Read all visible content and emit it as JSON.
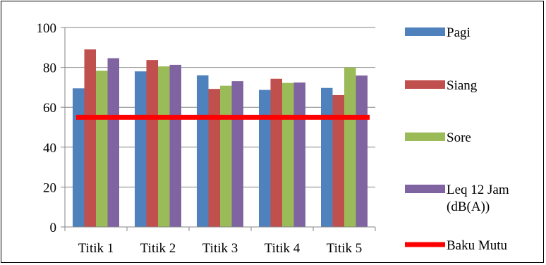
{
  "chart_data": {
    "type": "bar",
    "title": "",
    "xlabel": "",
    "ylabel": "",
    "categories": [
      "Titik 1",
      "Titik 2",
      "Titik 3",
      "Titik 4",
      "Titik 5"
    ],
    "ylim": [
      0,
      100
    ],
    "yticks": [
      0,
      20,
      40,
      60,
      80,
      100
    ],
    "grid": true,
    "legend_position": "right",
    "series": [
      {
        "name": "Pagi",
        "color": "#4F81BD",
        "values": [
          69.5,
          78,
          76,
          68.7,
          69.7
        ]
      },
      {
        "name": "Siang",
        "color": "#C0504D",
        "values": [
          89,
          83.7,
          69.2,
          74.3,
          66.1
        ]
      },
      {
        "name": "Sore",
        "color": "#9BBB59",
        "values": [
          78.3,
          80.5,
          70.8,
          72.2,
          80
        ]
      },
      {
        "name": "Leq 12 Jam",
        "name_line2": "(dB(A))",
        "color": "#8064A2",
        "values": [
          84.6,
          81.3,
          73.1,
          72.4,
          75.9
        ]
      }
    ],
    "reference_line": {
      "name": "Baku Mutu",
      "color": "#FF0000",
      "value": 55
    }
  }
}
